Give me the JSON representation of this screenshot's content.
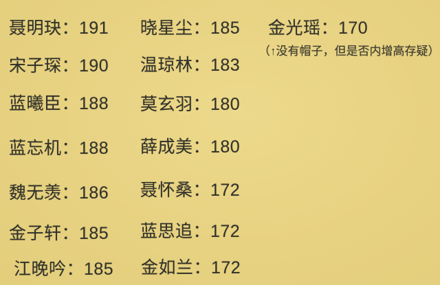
{
  "page": {
    "background_color": "#e7d282",
    "text_color": "#32322a",
    "separator": "："
  },
  "columns": [
    {
      "name": "left",
      "entries": [
        {
          "name": "聂明玦",
          "height": "191"
        },
        {
          "name": "宋子琛",
          "height": "190"
        },
        {
          "name": "蓝曦臣",
          "height": "188"
        },
        {
          "name": "蓝忘机",
          "height": "188"
        },
        {
          "name": "魏无羡",
          "height": "186"
        },
        {
          "name": "金子轩",
          "height": "185"
        },
        {
          "name": "江晚吟",
          "height": "185"
        }
      ]
    },
    {
      "name": "middle",
      "entries": [
        {
          "name": "晓星尘",
          "height": "185"
        },
        {
          "name": "温琼林",
          "height": "183"
        },
        {
          "name": "莫玄羽",
          "height": "180"
        },
        {
          "name": "薛成美",
          "height": "180"
        },
        {
          "name": "聂怀桑",
          "height": "172"
        },
        {
          "name": "蓝思追",
          "height": "172"
        },
        {
          "name": "金如兰",
          "height": "172"
        }
      ]
    },
    {
      "name": "right",
      "entries": [
        {
          "name": "金光瑶",
          "height": "170"
        }
      ]
    }
  ],
  "note": {
    "prefix": "（",
    "arrow": "↑",
    "text": "没有帽子，但是否内增高存疑",
    "suffix": "）"
  }
}
